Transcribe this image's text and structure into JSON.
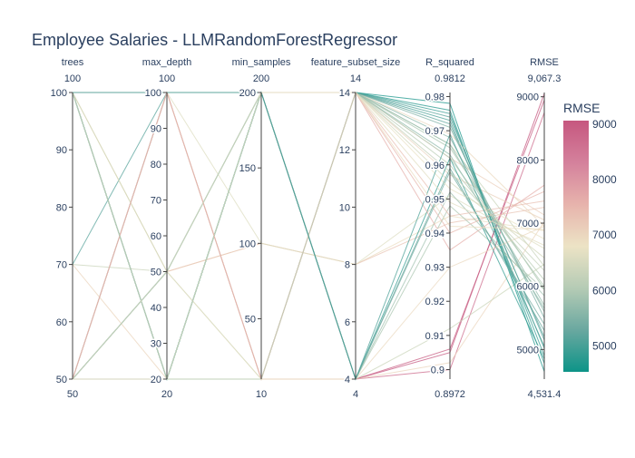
{
  "chart_data": {
    "type": "parcoords",
    "title": "Employee Salaries - LLMRandomForestRegressor",
    "dimensions": [
      {
        "label": "trees",
        "range": [
          50,
          100
        ],
        "ticks": [
          50,
          60,
          70,
          80,
          90,
          100
        ],
        "range_labels": [
          "50",
          "100"
        ]
      },
      {
        "label": "max_depth",
        "range": [
          20,
          100
        ],
        "ticks": [
          20,
          30,
          40,
          50,
          60,
          70,
          80,
          90,
          100
        ],
        "range_labels": [
          "20",
          "100"
        ]
      },
      {
        "label": "min_samples",
        "range": [
          10,
          200
        ],
        "ticks": [
          50,
          100,
          150,
          200
        ],
        "range_labels": [
          "10",
          "200"
        ]
      },
      {
        "label": "feature_subset_size",
        "range": [
          4,
          14
        ],
        "ticks": [
          4,
          6,
          8,
          10,
          12,
          14
        ],
        "tick_labels": [
          "4",
          "6",
          "8",
          "10",
          "12",
          "14"
        ],
        "range_labels": [
          "4",
          "14"
        ]
      },
      {
        "label": "R_squared",
        "range": [
          0.8972,
          0.9812
        ],
        "ticks": [
          0.9,
          0.91,
          0.92,
          0.93,
          0.94,
          0.95,
          0.96,
          0.97,
          0.98
        ],
        "range_labels": [
          "0.8972",
          "0.9812"
        ]
      },
      {
        "label": "RMSE",
        "range": [
          4531.4,
          9067.3
        ],
        "ticks": [
          5000,
          6000,
          7000,
          8000,
          9000
        ],
        "tick_labels": [
          "5000",
          "6000",
          "7000",
          "8000",
          "9000"
        ],
        "range_labels": [
          "4,531.4",
          "9,067.3"
        ]
      }
    ],
    "lines": [
      [
        100,
        20,
        10,
        14,
        0.962,
        7130
      ],
      [
        100,
        20,
        10,
        4,
        0.905,
        9050
      ],
      [
        100,
        20,
        200,
        14,
        0.973,
        5020
      ],
      [
        100,
        50,
        100,
        8,
        0.945,
        6880
      ],
      [
        100,
        100,
        200,
        4,
        0.9,
        8750
      ],
      [
        70,
        50,
        200,
        14,
        0.966,
        6320
      ],
      [
        70,
        20,
        10,
        4,
        0.902,
        7020
      ],
      [
        50,
        100,
        200,
        4,
        0.906,
        8950
      ],
      [
        50,
        100,
        10,
        14,
        0.957,
        7050
      ],
      [
        50,
        20,
        200,
        14,
        0.975,
        4900
      ],
      [
        50,
        50,
        100,
        8,
        0.943,
        7250
      ],
      [
        50,
        20,
        200,
        4,
        0.912,
        6350
      ],
      [
        50,
        100,
        10,
        14,
        0.968,
        5600
      ],
      [
        100,
        20,
        200,
        14,
        0.976,
        4780
      ],
      [
        100,
        100,
        100,
        8,
        0.951,
        6600
      ],
      [
        50,
        50,
        10,
        14,
        0.96,
        6100
      ],
      [
        100,
        20,
        200,
        4,
        0.952,
        5850
      ],
      [
        100,
        100,
        10,
        14,
        0.969,
        6950
      ],
      [
        70,
        100,
        200,
        14,
        0.974,
        5150
      ],
      [
        50,
        20,
        10,
        14,
        0.966,
        5700
      ],
      [
        50,
        20,
        200,
        4,
        0.958,
        5400
      ],
      [
        100,
        100,
        200,
        4,
        0.948,
        5950
      ],
      [
        100,
        50,
        10,
        14,
        0.953,
        6750
      ],
      [
        50,
        100,
        200,
        14,
        0.965,
        5950
      ],
      [
        100,
        20,
        200,
        14,
        0.978,
        4650
      ],
      [
        50,
        20,
        200,
        4,
        0.962,
        4850
      ],
      [
        50,
        50,
        200,
        14,
        0.972,
        5200
      ],
      [
        100,
        20,
        10,
        4,
        0.93,
        6950
      ],
      [
        100,
        100,
        10,
        14,
        0.94,
        7500
      ],
      [
        50,
        100,
        200,
        14,
        0.945,
        7350
      ],
      [
        100,
        50,
        200,
        14,
        0.955,
        6450
      ],
      [
        50,
        20,
        10,
        14,
        0.962,
        6000
      ],
      [
        100,
        100,
        200,
        14,
        0.971,
        5500
      ],
      [
        50,
        50,
        200,
        4,
        0.959,
        5300
      ],
      [
        100,
        20,
        200,
        14,
        0.963,
        5650
      ],
      [
        50,
        100,
        10,
        14,
        0.935,
        7600
      ],
      [
        100,
        20,
        10,
        14,
        0.958,
        6250
      ],
      [
        50,
        50,
        200,
        14,
        0.949,
        6650
      ],
      [
        100,
        100,
        200,
        4,
        0.969,
        5050
      ],
      [
        50,
        20,
        200,
        14,
        0.942,
        6900
      ]
    ],
    "color_dimension": "RMSE",
    "colorbar": {
      "title": "RMSE",
      "ticks": [
        5000,
        6000,
        7000,
        8000,
        9000
      ],
      "tick_labels": [
        "5000",
        "6000",
        "7000",
        "8000",
        "9000"
      ]
    },
    "colorscale": [
      "#0d9488",
      "#6aa8a0",
      "#b5cbb5",
      "#ece3c5",
      "#e7b3ac",
      "#d4819c",
      "#c6577f"
    ]
  }
}
